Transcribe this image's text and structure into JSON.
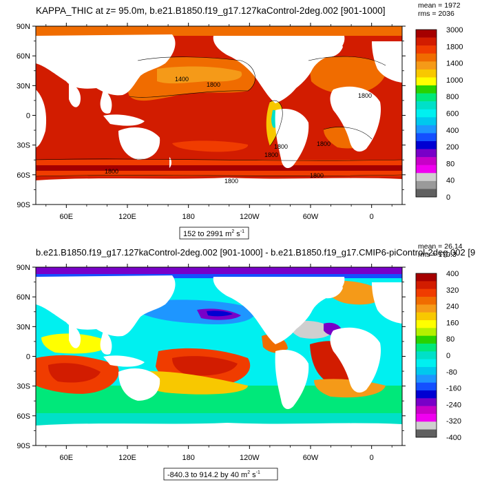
{
  "chart_data": [
    {
      "type": "heatmap",
      "title": "KAPPA_THIC at z=  95.0m, b.e21.B1850.f19_g17.127kaControl-2deg.002 [901-1000]",
      "stats": {
        "mean": "mean = 1972",
        "rms": "rms = 2036"
      },
      "range_label": "152 to 2991 m",
      "units_exponent": "2",
      "units_tail": " s",
      "units_tail_exponent": "-1",
      "lon_ticks": [
        "60E",
        "120E",
        "180",
        "120W",
        "60W",
        "0"
      ],
      "lat_ticks": [
        "90N",
        "60N",
        "30N",
        "0",
        "30S",
        "60S",
        "90S"
      ],
      "xlim": [
        30,
        390
      ],
      "ylim": [
        -90,
        90
      ],
      "colorbar": {
        "labels": [
          "3000",
          "1800",
          "1400",
          "1000",
          "800",
          "600",
          "400",
          "200",
          "80",
          "40",
          "0"
        ],
        "colors": [
          "#a50000",
          "#d21c00",
          "#f03c00",
          "#f06c00",
          "#f59a18",
          "#f8c800",
          "#ffff00",
          "#28d200",
          "#00e87a",
          "#00e0c8",
          "#00f0f0",
          "#00c8ee",
          "#1e96ff",
          "#1450ff",
          "#0000d2",
          "#7800c8",
          "#c800c8",
          "#f000f0",
          "#cfcfcf",
          "#9a9a9a",
          "#606060"
        ]
      },
      "contour_labels": [
        "1400",
        "1800",
        "1800",
        "1800",
        "1800",
        "1800",
        "1800",
        "1800",
        "1800"
      ]
    },
    {
      "type": "heatmap",
      "title": "b.e21.B1850.f19_g17.127kaControl-2deg.002 [901-1000] - b.e21.B1850.f19_g17.CMIP6-piControl-2deg.002 [9",
      "stats": {
        "mean": "mean = 26.14",
        "rms": "rms = 170.3"
      },
      "range_label": "-840.3 to 914.2 by 40 m",
      "units_exponent": "2",
      "units_tail": " s",
      "units_tail_exponent": "-1",
      "lon_ticks": [
        "60E",
        "120E",
        "180",
        "120W",
        "60W",
        "0"
      ],
      "lat_ticks": [
        "90N",
        "60N",
        "30N",
        "0",
        "30S",
        "60S",
        "90S"
      ],
      "xlim": [
        30,
        390
      ],
      "ylim": [
        -90,
        90
      ],
      "colorbar": {
        "labels": [
          "400",
          "320",
          "240",
          "160",
          "80",
          "0",
          "-80",
          "-160",
          "-240",
          "-320",
          "-400"
        ],
        "colors": [
          "#a50000",
          "#d21c00",
          "#f03c00",
          "#f06c00",
          "#f59a18",
          "#f8c800",
          "#ffff00",
          "#b4f000",
          "#28d200",
          "#00e87a",
          "#00e0c8",
          "#00f0f0",
          "#00c8ee",
          "#1e96ff",
          "#1450ff",
          "#0000d2",
          "#7800c8",
          "#c800c8",
          "#f000f0",
          "#cfcfcf",
          "#606060"
        ]
      }
    }
  ]
}
